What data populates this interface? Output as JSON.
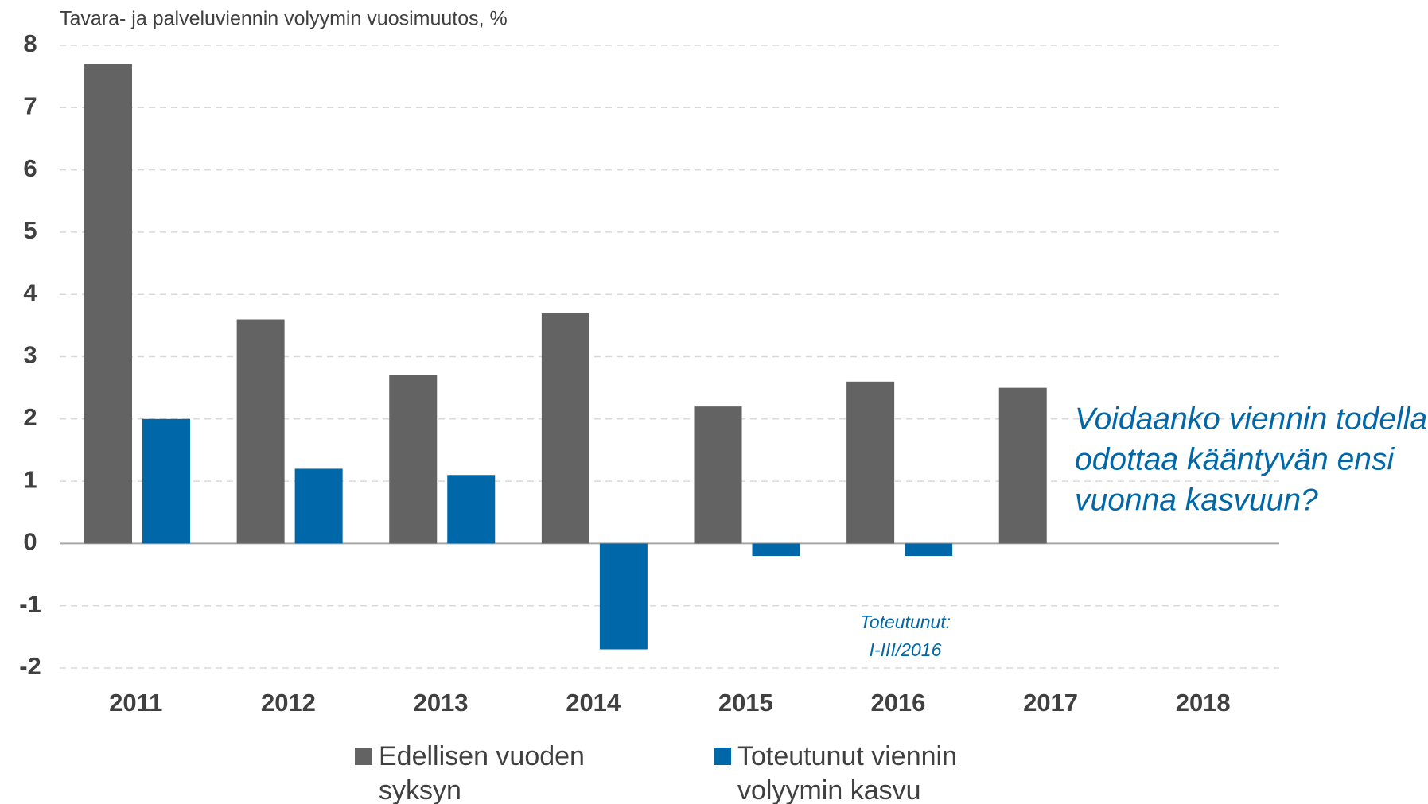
{
  "chart_data": {
    "type": "bar",
    "title": "Tavara- ja palveluviennin volyymin vuosimuutos, %",
    "categories": [
      "2011",
      "2012",
      "2013",
      "2014",
      "2015",
      "2016",
      "2017",
      "2018"
    ],
    "series": [
      {
        "name": "Edellisen vuoden syksyn mediaaniennuste",
        "color": "#636363",
        "values": [
          7.7,
          3.6,
          2.7,
          3.7,
          2.2,
          2.6,
          2.5,
          null
        ]
      },
      {
        "name": "Toteutunut viennin volyymin kasvu",
        "color": "#0068a8",
        "values": [
          2.0,
          1.2,
          1.1,
          -1.7,
          -0.2,
          -0.2,
          null,
          null
        ]
      }
    ],
    "ylim": [
      -2,
      8
    ],
    "yticks": [
      -2,
      -1,
      0,
      1,
      2,
      3,
      4,
      5,
      6,
      7,
      8
    ],
    "grid": true,
    "annotations": [
      {
        "lines": [
          "Voidaanko viennin todella",
          "odottaa kääntyvän ensi",
          "vuonna kasvuun?"
        ]
      },
      {
        "lines": [
          "Toteutunut:",
          "I-III/2016"
        ]
      }
    ],
    "legend": "bottom"
  }
}
